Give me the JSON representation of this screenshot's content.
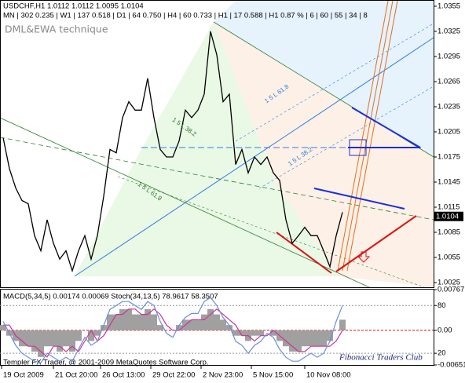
{
  "chart_data": [
    {
      "type": "line",
      "title": "USDCHF,H1  1.0112 1.0112 1.0095 1.0104",
      "subtitle": "MN | 302  0.235 | W1 | 137  0.518 | D1 | 64  0.750 | H4 | 60  0.733 | H1 | 17  0.588 | H1  0.87 % | 6 | 60 | 55 | 34 | 8",
      "annotations": [
        "DML&EWA technique",
        "1 5 L 61.8",
        "1 5 L 38.2",
        "1 5 L 61.8",
        "1 5 L 38.2"
      ],
      "x": [
        1,
        3,
        5,
        7,
        9,
        11,
        13,
        15,
        17,
        19,
        21,
        23,
        25,
        27,
        29,
        31,
        33,
        35,
        37,
        39,
        41,
        43,
        45,
        47,
        49,
        51,
        53,
        55,
        57,
        59,
        61,
        63,
        65,
        67,
        69,
        71,
        73,
        75,
        77,
        79,
        81,
        83,
        85,
        87,
        89,
        91,
        93,
        95,
        97,
        99,
        101,
        103,
        105,
        107,
        109
      ],
      "xlim": [
        0,
        138
      ],
      "series": [
        {
          "name": "USDCHF,H1",
          "color": "#000000",
          "values": [
            1.0198,
            1.0161,
            1.0138,
            1.0123,
            1.0119,
            1.0081,
            1.0063,
            1.01,
            1.0072,
            1.0053,
            1.0063,
            1.0039,
            1.0063,
            1.0081,
            1.0053,
            1.0081,
            1.0128,
            1.0184,
            1.018,
            1.0222,
            1.0241,
            1.0231,
            1.0231,
            1.0269,
            1.0222,
            1.0184,
            1.0175,
            1.0175,
            1.0194,
            1.0231,
            1.0222,
            1.0231,
            1.025,
            1.0325,
            1.0297,
            1.0241,
            1.025,
            1.0166,
            1.0184,
            1.0156,
            1.0175,
            1.0166,
            1.0175,
            1.0156,
            1.0147,
            1.01,
            1.0072,
            1.0081,
            1.0091,
            1.0081,
            1.0081,
            1.0063,
            1.0044,
            1.0081,
            1.0109
          ]
        }
      ],
      "last_price": 1.0104,
      "ylim": [
        1.00194,
        1.03606
      ],
      "yticks": [
        1.0355,
        1.0325,
        1.0295,
        1.0265,
        1.0235,
        1.0205,
        1.0175,
        1.0145,
        1.0115,
        1.0085,
        1.0055,
        1.0025
      ],
      "grid": false
    },
    {
      "type": "combo",
      "title": "MACD(5,34,5) 0.00174 0.00069 Stoch(34,13,5) 78.9617 58.3507",
      "annotations": [
        "Templer FX Trader, @ 2001-2009 MetaQuotes Software Corp.",
        "Fibonacci Traders Club"
      ],
      "x": [
        1,
        3,
        5,
        7,
        9,
        11,
        13,
        15,
        17,
        19,
        21,
        23,
        25,
        27,
        29,
        31,
        33,
        35,
        37,
        39,
        41,
        43,
        45,
        47,
        49,
        51,
        53,
        55,
        57,
        59,
        61,
        63,
        65,
        67,
        69,
        71,
        73,
        75,
        77,
        79,
        81,
        83,
        85,
        87,
        89,
        91,
        93,
        95,
        97,
        99,
        101,
        103,
        105,
        107,
        109
      ],
      "xlim": [
        0,
        138
      ],
      "xticks": [
        {
          "value": 0.5,
          "label": "19 Oct 2009"
        },
        {
          "value": 17,
          "label": "21 Oct 20:00"
        },
        {
          "value": 32,
          "label": "26 Oct 13:00"
        },
        {
          "value": 48,
          "label": "29 Oct 22:00"
        },
        {
          "value": 64,
          "label": "2 Nov 23:00"
        },
        {
          "value": 80,
          "label": "5 Nov 15:00"
        },
        {
          "value": 97,
          "label": "10 Nov 08:00"
        }
      ],
      "series": [
        {
          "name": "MACD",
          "type": "bar",
          "color": "#a0a0a0",
          "values": [
            0.001,
            -0.001,
            -0.002,
            -0.003,
            -0.003,
            -0.004,
            -0.005,
            -0.003,
            -0.003,
            -0.004,
            -0.003,
            -0.004,
            -0.002,
            0,
            -0.002,
            -0.001,
            0.001,
            0.003,
            0.003,
            0.004,
            0.004,
            0.003,
            0.003,
            0.004,
            0.003,
            0.001,
            0,
            0,
            0.001,
            0.002,
            0.002,
            0.002,
            0.003,
            0.004,
            0.003,
            0.002,
            0.001,
            -0.001,
            -0.001,
            -0.002,
            -0.001,
            -0.001,
            0,
            -0.001,
            -0.002,
            -0.003,
            -0.004,
            -0.004,
            -0.003,
            -0.003,
            -0.003,
            -0.003,
            -0.002,
            0,
            0.002
          ]
        },
        {
          "name": "Signal",
          "type": "line",
          "color": "#cc3399",
          "values": [
            0.001,
            0.001,
            -0.001,
            -0.002,
            -0.003,
            -0.003,
            -0.004,
            -0.005,
            -0.003,
            -0.003,
            -0.004,
            -0.003,
            -0.004,
            -0.002,
            0,
            -0.002,
            -0.001,
            0.001,
            0.003,
            0.003,
            0.004,
            0.004,
            0.003,
            0.003,
            0.004,
            0.003,
            0.001,
            0,
            0,
            0.001,
            0.002,
            0.002,
            0.002,
            0.003,
            0.004,
            0.003,
            0.002,
            0.001,
            -0.001,
            -0.001,
            -0.002,
            -0.001,
            -0.001,
            0,
            -0.001,
            -0.002,
            -0.003,
            -0.004,
            -0.004,
            -0.003,
            -0.003,
            -0.003,
            -0.003,
            -0.002,
            0
          ]
        },
        {
          "name": "Stoch",
          "type": "line",
          "axis": "y2",
          "color": "#6a8fd8",
          "values": [
            60,
            45,
            30,
            20,
            15,
            10,
            8,
            20,
            15,
            10,
            15,
            10,
            25,
            40,
            30,
            35,
            55,
            75,
            80,
            85,
            85,
            80,
            75,
            85,
            80,
            60,
            45,
            40,
            55,
            65,
            70,
            70,
            85,
            90,
            80,
            65,
            55,
            35,
            30,
            20,
            30,
            35,
            45,
            40,
            25,
            15,
            10,
            10,
            15,
            20,
            15,
            20,
            35,
            60,
            80
          ]
        }
      ],
      "ylim": [
        -0.00651,
        0.00767
      ],
      "yticks": [
        0.00767,
        {
          "value": 0,
          "label": "0.00"
        },
        -0.00651
      ],
      "y2lim": [
        5.3,
        100
      ],
      "y2ticks": [
        80,
        20
      ]
    }
  ]
}
